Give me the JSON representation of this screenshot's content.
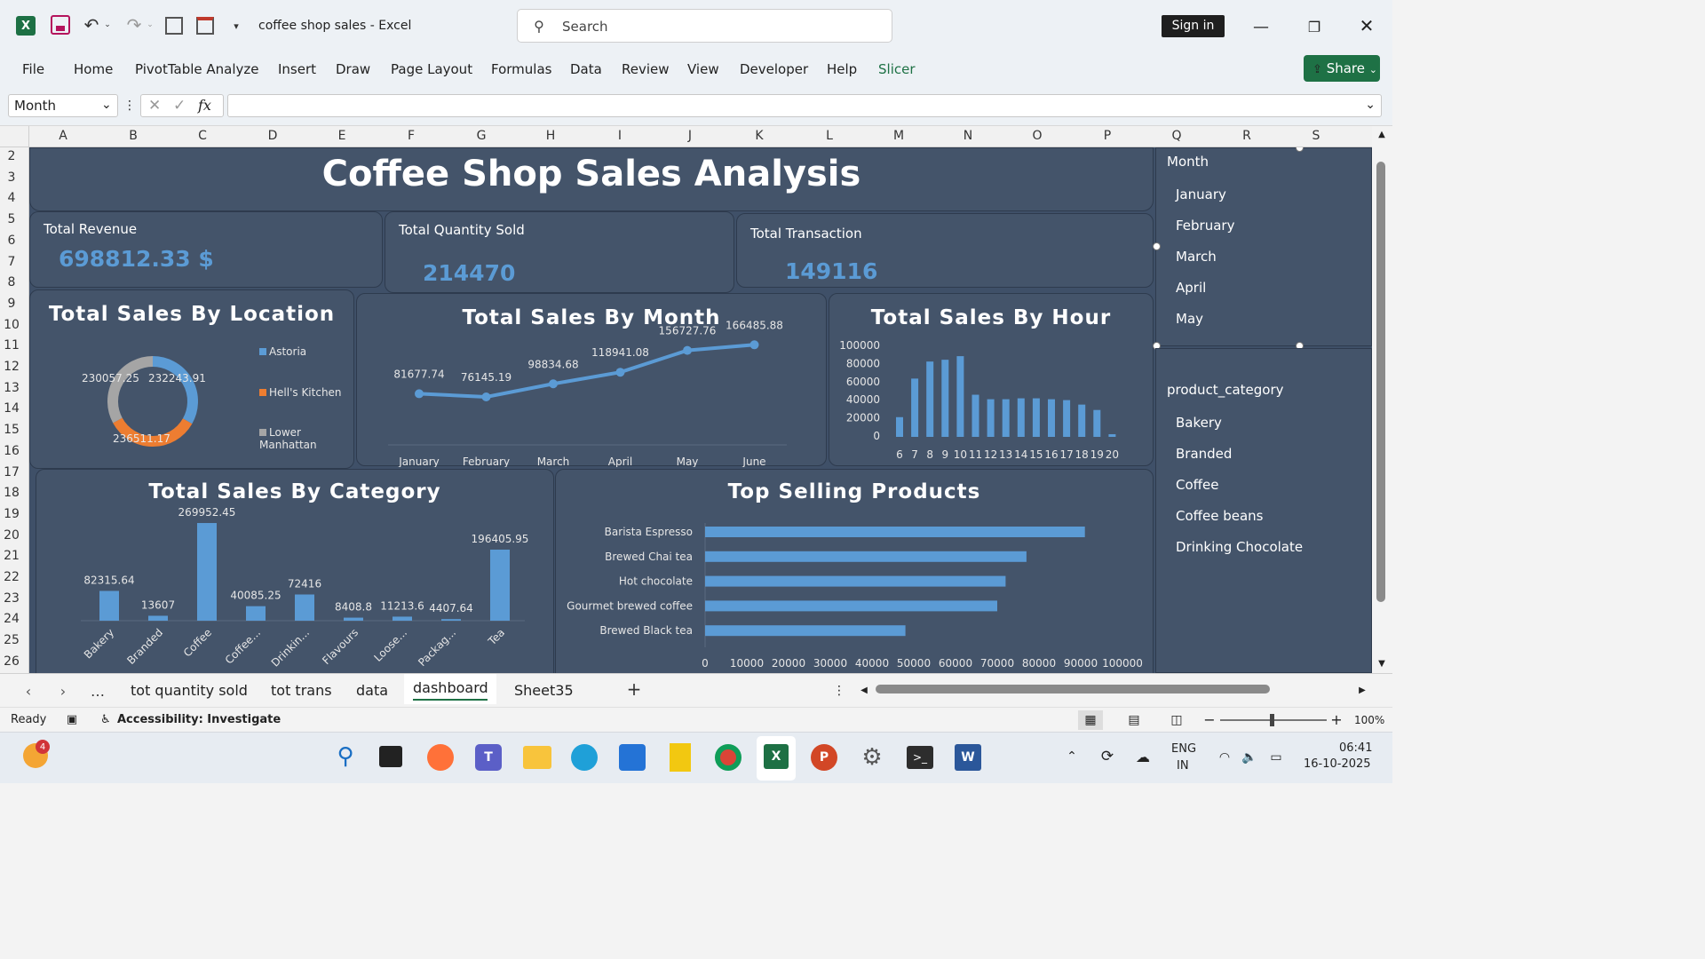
{
  "app": {
    "title": "coffee shop sales - Excel",
    "search_placeholder": "Search",
    "sign_in": "Sign in"
  },
  "menu": [
    "File",
    "Home",
    "PivotTable Analyze",
    "Insert",
    "Draw",
    "Page Layout",
    "Formulas",
    "Data",
    "Review",
    "View",
    "Developer",
    "Help",
    "Slicer"
  ],
  "share_label": "Share",
  "formula": {
    "name_box": "Month",
    "fx": "fx",
    "content": ""
  },
  "columns": [
    "A",
    "B",
    "C",
    "D",
    "E",
    "F",
    "G",
    "H",
    "I",
    "J",
    "K",
    "L",
    "M",
    "N",
    "O",
    "P",
    "Q",
    "R",
    "S"
  ],
  "rows": [
    "2",
    "3",
    "4",
    "5",
    "6",
    "7",
    "8",
    "9",
    "10",
    "11",
    "12",
    "13",
    "14",
    "15",
    "16",
    "17",
    "18",
    "19",
    "20",
    "21",
    "22",
    "23",
    "24",
    "25",
    "26"
  ],
  "dashboard": {
    "title": "Coffee Shop Sales Analysis",
    "kpis": [
      {
        "label": "Total Revenue",
        "value": "698812.33 $"
      },
      {
        "label": "Total Quantity Sold",
        "value": "214470"
      },
      {
        "label": "Total Transaction",
        "value": "149116"
      }
    ]
  },
  "chart_data": [
    {
      "type": "pie",
      "variant": "donut",
      "title": "Total Sales By Location",
      "categories": [
        "Astoria",
        "Hell's Kitchen",
        "Lower Manhattan"
      ],
      "values": [
        232243.91,
        236511.17,
        230057.25
      ],
      "value_labels": [
        "232243.91",
        "236511.17",
        "230057.25"
      ],
      "colors": [
        "#5b9bd5",
        "#ed7d31",
        "#a5a5a5"
      ],
      "legend": "right"
    },
    {
      "type": "line",
      "title": "Total Sales By Month",
      "categories": [
        "January",
        "February",
        "March",
        "April",
        "May",
        "June"
      ],
      "values": [
        81677.74,
        76145.19,
        98834.68,
        118941.08,
        156727.76,
        166485.88
      ],
      "value_labels": [
        "81677.74",
        "76145.19",
        "98834.68",
        "118941.08",
        "156727.76",
        "166485.88"
      ],
      "color": "#5b9bd5"
    },
    {
      "type": "bar",
      "title": "Total Sales By Hour",
      "categories": [
        "6",
        "7",
        "8",
        "9",
        "10",
        "11",
        "12",
        "13",
        "14",
        "15",
        "16",
        "17",
        "18",
        "19",
        "20"
      ],
      "values": [
        22000,
        65000,
        84000,
        86000,
        90000,
        47000,
        42000,
        42000,
        43000,
        43000,
        42000,
        41000,
        36000,
        30000,
        3000
      ],
      "ylim": [
        0,
        100000
      ],
      "yticks": [
        "100000",
        "80000",
        "60000",
        "40000",
        "20000",
        "0"
      ],
      "color": "#5b9bd5"
    },
    {
      "type": "bar",
      "title": "Total Sales By Category",
      "categories": [
        "Bakery",
        "Branded",
        "Coffee",
        "Coffee...",
        "Drinkin...",
        "Flavours",
        "Loose...",
        "Packag...",
        "Tea"
      ],
      "values": [
        82315.64,
        13607,
        269952.45,
        40085.25,
        72416,
        8408.8,
        11213.6,
        4407.64,
        196405.95
      ],
      "value_labels": [
        "82315.64",
        "13607",
        "269952.45",
        "40085.25",
        "72416",
        "8408.8",
        "11213.6",
        "4407.64",
        "196405.95"
      ],
      "color": "#5b9bd5"
    },
    {
      "type": "bar",
      "orientation": "horizontal",
      "title": "Top Selling Products",
      "categories": [
        "Barista Espresso",
        "Brewed Chai tea",
        "Hot chocolate",
        "Gourmet brewed coffee",
        "Brewed Black tea"
      ],
      "values": [
        91000,
        77000,
        72000,
        70000,
        48000
      ],
      "xlim": [
        0,
        100000
      ],
      "xticks": [
        "0",
        "10000",
        "20000",
        "30000",
        "40000",
        "50000",
        "60000",
        "70000",
        "80000",
        "90000",
        "100000"
      ],
      "color": "#5b9bd5"
    }
  ],
  "slicers": [
    {
      "title": "Month",
      "items": [
        "January",
        "February",
        "March",
        "April",
        "May"
      ]
    },
    {
      "title": "product_category",
      "items": [
        "Bakery",
        "Branded",
        "Coffee",
        "Coffee beans",
        "Drinking Chocolate"
      ]
    }
  ],
  "sheet_tabs": [
    "tot quantity sold",
    "tot trans",
    "data",
    "dashboard",
    "Sheet35"
  ],
  "active_tab": "dashboard",
  "status": {
    "ready": "Ready",
    "accessibility": "Accessibility: Investigate",
    "zoom": "100%"
  },
  "taskbar": {
    "lang1": "ENG",
    "lang2": "IN",
    "time": "06:41",
    "date": "16-10-2025",
    "badge": "4"
  }
}
